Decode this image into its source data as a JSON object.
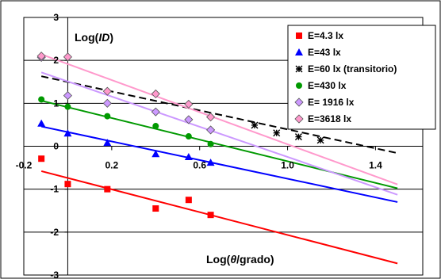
{
  "chart_data": {
    "type": "scatter",
    "title": "",
    "ylabel_parts": [
      "Log(",
      "ID",
      ")"
    ],
    "xlabel_parts": [
      "Log(",
      "θ",
      "/grado)"
    ],
    "xlim": [
      -0.2,
      1.55
    ],
    "ylim": [
      -3,
      3
    ],
    "x_ticks": [
      {
        "value": -0.2,
        "label": "-0.2"
      },
      {
        "value": 0.2,
        "label": "0.2"
      },
      {
        "value": 0.6,
        "label": "0.6"
      },
      {
        "value": 1.0,
        "label": "1.0"
      },
      {
        "value": 1.4,
        "label": "1.4"
      }
    ],
    "y_ticks": [
      {
        "value": 3,
        "label": "3"
      },
      {
        "value": 2,
        "label": "2"
      },
      {
        "value": 1,
        "label": "1"
      },
      {
        "value": 0,
        "label": "0"
      },
      {
        "value": -1,
        "label": "-1"
      },
      {
        "value": -2,
        "label": "-2"
      },
      {
        "value": -3,
        "label": "-3"
      }
    ],
    "grid": "horizontal",
    "legend_position": "top-right",
    "series": [
      {
        "name": "E=4.3 lx",
        "marker": "square",
        "color": "#ff0000",
        "points": [
          [
            -0.12,
            -0.29
          ],
          [
            0.0,
            -0.88
          ],
          [
            0.18,
            -1.0
          ],
          [
            0.4,
            -1.45
          ],
          [
            0.55,
            -1.25
          ],
          [
            0.65,
            -1.6
          ]
        ],
        "fit": [
          [
            -0.12,
            -0.58
          ],
          [
            1.5,
            -2.73
          ]
        ]
      },
      {
        "name": "E=43 lx",
        "marker": "triangle",
        "color": "#0000ff",
        "points": [
          [
            -0.12,
            0.53
          ],
          [
            0.0,
            0.3
          ],
          [
            0.18,
            0.08
          ],
          [
            0.4,
            -0.18
          ],
          [
            0.55,
            -0.25
          ],
          [
            0.65,
            -0.38
          ]
        ],
        "fit": [
          [
            -0.12,
            0.46
          ],
          [
            1.5,
            -1.3
          ]
        ]
      },
      {
        "name": "E=60 lx (transitorio)",
        "marker": "star",
        "color": "#000000",
        "dashed": true,
        "points": [
          [
            0.85,
            0.49
          ],
          [
            0.95,
            0.31
          ],
          [
            1.05,
            0.22
          ],
          [
            1.15,
            0.14
          ]
        ],
        "fit": [
          [
            -0.12,
            1.63
          ],
          [
            1.5,
            -0.16
          ]
        ]
      },
      {
        "name": "E=430 lx",
        "marker": "circle",
        "color": "#009900",
        "points": [
          [
            -0.12,
            1.09
          ],
          [
            0.0,
            0.92
          ],
          [
            0.18,
            0.7
          ],
          [
            0.4,
            0.47
          ],
          [
            0.55,
            0.23
          ],
          [
            0.65,
            0.05
          ]
        ],
        "fit": [
          [
            -0.12,
            1.06
          ],
          [
            1.5,
            -0.98
          ]
        ]
      },
      {
        "name": "E= 1916 lx",
        "marker": "diamond",
        "color": "#cc99ff",
        "points": [
          [
            -0.12,
            2.07
          ],
          [
            0.0,
            1.18
          ],
          [
            0.18,
            1.0
          ],
          [
            0.4,
            0.8
          ],
          [
            0.55,
            0.62
          ],
          [
            0.65,
            0.38
          ]
        ],
        "fit": [
          [
            -0.12,
            1.72
          ],
          [
            1.5,
            -1.13
          ]
        ]
      },
      {
        "name": "E=3618 lx",
        "marker": "diamond",
        "color": "#ff99cc",
        "points": [
          [
            -0.12,
            2.1
          ],
          [
            0.0,
            2.08
          ],
          [
            0.18,
            1.28
          ],
          [
            0.4,
            1.22
          ],
          [
            0.55,
            0.98
          ],
          [
            0.65,
            0.68
          ]
        ],
        "fit": [
          [
            -0.12,
            2.14
          ],
          [
            1.5,
            -0.89
          ]
        ]
      }
    ]
  }
}
